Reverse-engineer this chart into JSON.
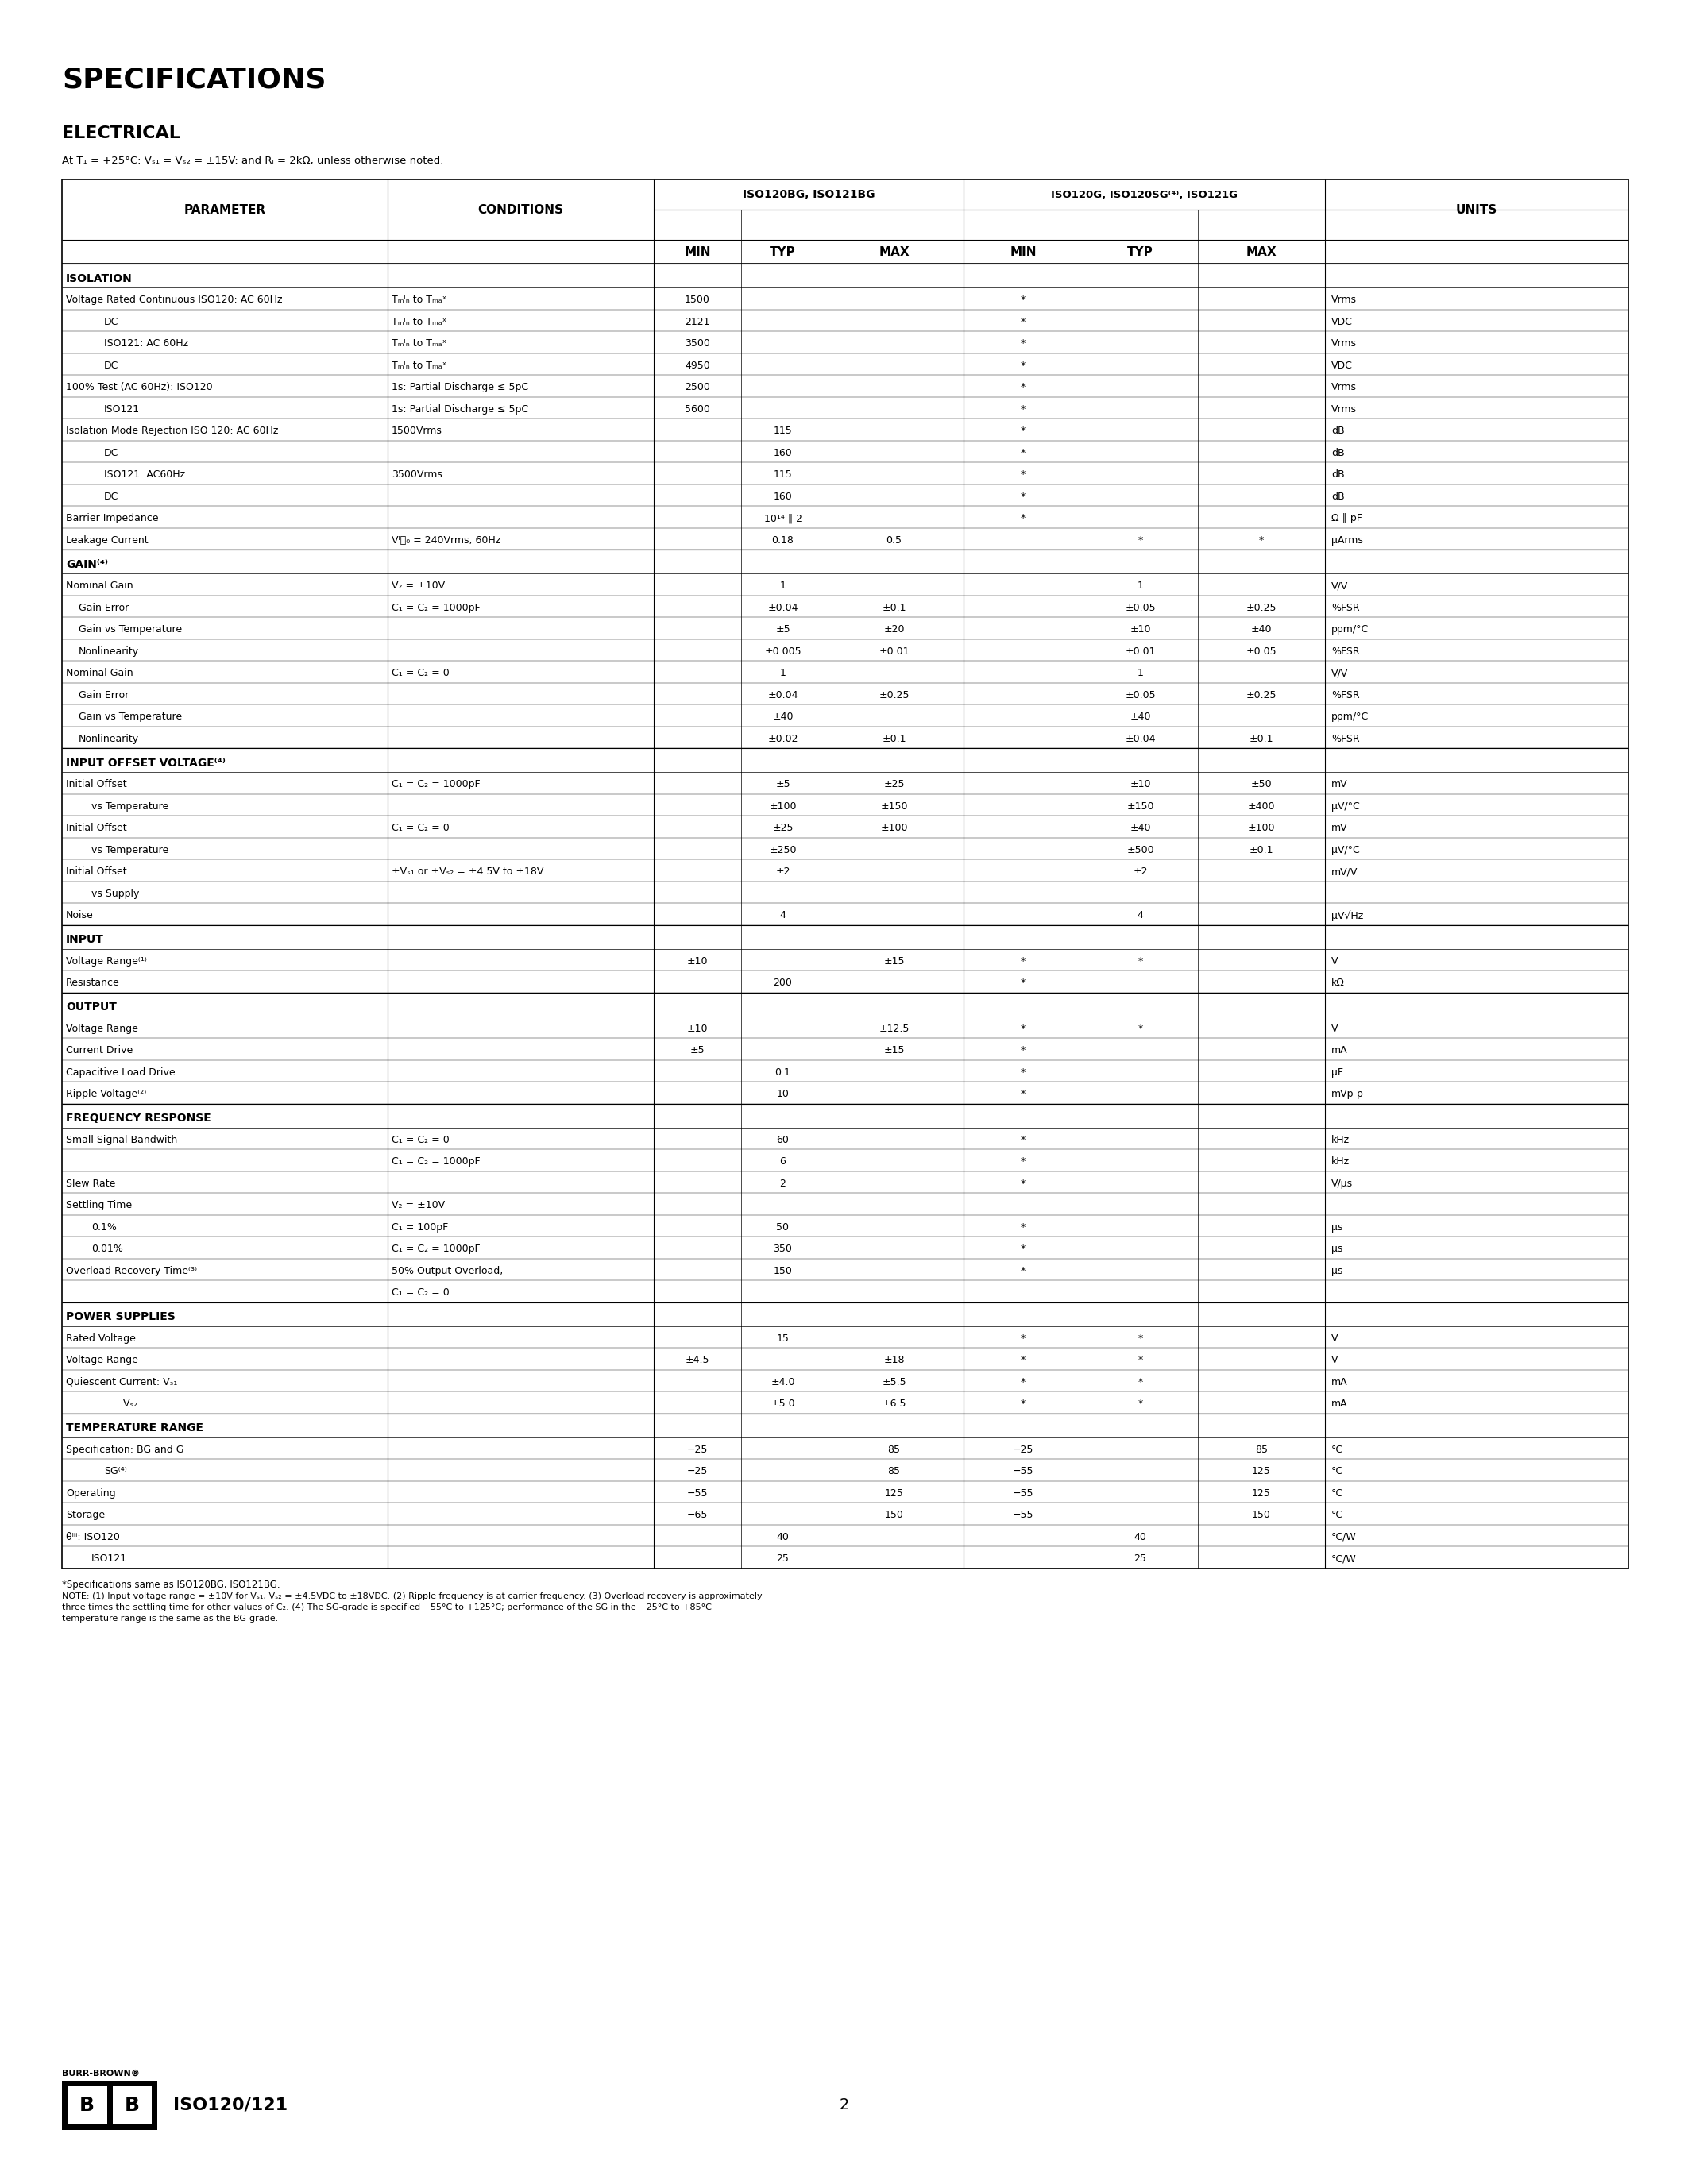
{
  "title": "SPECIFICATIONS",
  "subtitle": "ELECTRICAL",
  "conditions_line": "At T₁ = +25°C: Vₛ₁ = Vₛ₂ = ±15V: and Rₗ = 2kΩ, unless otherwise noted.",
  "bg_color": "#ffffff",
  "text_color": "#000000",
  "table_data": [
    {
      "type": "section",
      "text": "ISOLATION"
    },
    {
      "type": "row",
      "param": "Voltage Rated Continuous ISO120: AC 60Hz",
      "indent": 0,
      "cond": "Tₘᴵₙ to Tₘₐˣ",
      "min1": "1500",
      "typ1": "",
      "max1": "",
      "min2": "*",
      "typ2": "",
      "max2": "",
      "units": "Vrms"
    },
    {
      "type": "row",
      "param": "DC",
      "indent": 3,
      "cond": "Tₘᴵₙ to Tₘₐˣ",
      "min1": "2121",
      "typ1": "",
      "max1": "",
      "min2": "*",
      "typ2": "",
      "max2": "",
      "units": "VDC"
    },
    {
      "type": "row",
      "param": "ISO121: AC 60Hz",
      "indent": 3,
      "cond": "Tₘᴵₙ to Tₘₐˣ",
      "min1": "3500",
      "typ1": "",
      "max1": "",
      "min2": "*",
      "typ2": "",
      "max2": "",
      "units": "Vrms"
    },
    {
      "type": "row",
      "param": "DC",
      "indent": 3,
      "cond": "Tₘᴵₙ to Tₘₐˣ",
      "min1": "4950",
      "typ1": "",
      "max1": "",
      "min2": "*",
      "typ2": "",
      "max2": "",
      "units": "VDC"
    },
    {
      "type": "row",
      "param": "100% Test (AC 60Hz): ISO120",
      "indent": 0,
      "cond": "1s: Partial Discharge ≤ 5pC",
      "min1": "2500",
      "typ1": "",
      "max1": "",
      "min2": "*",
      "typ2": "",
      "max2": "",
      "units": "Vrms"
    },
    {
      "type": "row",
      "param": "ISO121",
      "indent": 3,
      "cond": "1s: Partial Discharge ≤ 5pC",
      "min1": "5600",
      "typ1": "",
      "max1": "",
      "min2": "*",
      "typ2": "",
      "max2": "",
      "units": "Vrms"
    },
    {
      "type": "row",
      "param": "Isolation Mode Rejection ISO 120: AC 60Hz",
      "indent": 0,
      "cond": "1500Vrms",
      "min1": "",
      "typ1": "115",
      "max1": "",
      "min2": "*",
      "typ2": "",
      "max2": "",
      "units": "dB"
    },
    {
      "type": "row",
      "param": "DC",
      "indent": 3,
      "cond": "",
      "min1": "",
      "typ1": "160",
      "max1": "",
      "min2": "*",
      "typ2": "",
      "max2": "",
      "units": "dB"
    },
    {
      "type": "row",
      "param": "ISO121: AC60Hz",
      "indent": 3,
      "cond": "3500Vrms",
      "min1": "",
      "typ1": "115",
      "max1": "",
      "min2": "*",
      "typ2": "",
      "max2": "",
      "units": "dB"
    },
    {
      "type": "row",
      "param": "DC",
      "indent": 3,
      "cond": "",
      "min1": "",
      "typ1": "160",
      "max1": "",
      "min2": "*",
      "typ2": "",
      "max2": "",
      "units": "dB"
    },
    {
      "type": "row",
      "param": "Barrier Impedance",
      "indent": 0,
      "cond": "",
      "min1": "",
      "typ1": "10¹⁴ ‖ 2",
      "max1": "",
      "min2": "*",
      "typ2": "",
      "max2": "",
      "units": "Ω ‖ pF"
    },
    {
      "type": "row",
      "param": "Leakage Current",
      "indent": 0,
      "cond": "VᴵⰐ₀ = 240Vrms, 60Hz",
      "min1": "",
      "typ1": "0.18",
      "max1": "0.5",
      "min2": "",
      "typ2": "*",
      "max2": "*",
      "units": "μArms"
    },
    {
      "type": "section",
      "text": "GAIN⁽⁴⁾"
    },
    {
      "type": "row",
      "param": "Nominal Gain",
      "indent": 0,
      "cond": "V₂ = ±10V",
      "min1": "",
      "typ1": "1",
      "max1": "",
      "min2": "",
      "typ2": "1",
      "max2": "",
      "units": "V/V"
    },
    {
      "type": "row",
      "param": "Gain Error",
      "indent": 1,
      "cond": "C₁ = C₂ = 1000pF",
      "min1": "",
      "typ1": "±0.04",
      "max1": "±0.1",
      "min2": "",
      "typ2": "±0.05",
      "max2": "±0.25",
      "units": "%FSR"
    },
    {
      "type": "row",
      "param": "Gain vs Temperature",
      "indent": 1,
      "cond": "",
      "min1": "",
      "typ1": "±5",
      "max1": "±20",
      "min2": "",
      "typ2": "±10",
      "max2": "±40",
      "units": "ppm/°C"
    },
    {
      "type": "row",
      "param": "Nonlinearity",
      "indent": 1,
      "cond": "",
      "min1": "",
      "typ1": "±0.005",
      "max1": "±0.01",
      "min2": "",
      "typ2": "±0.01",
      "max2": "±0.05",
      "units": "%FSR"
    },
    {
      "type": "row",
      "param": "Nominal Gain",
      "indent": 0,
      "cond": "C₁ = C₂ = 0",
      "min1": "",
      "typ1": "1",
      "max1": "",
      "min2": "",
      "typ2": "1",
      "max2": "",
      "units": "V/V"
    },
    {
      "type": "row",
      "param": "Gain Error",
      "indent": 1,
      "cond": "",
      "min1": "",
      "typ1": "±0.04",
      "max1": "±0.25",
      "min2": "",
      "typ2": "±0.05",
      "max2": "±0.25",
      "units": "%FSR"
    },
    {
      "type": "row",
      "param": "Gain vs Temperature",
      "indent": 1,
      "cond": "",
      "min1": "",
      "typ1": "±40",
      "max1": "",
      "min2": "",
      "typ2": "±40",
      "max2": "",
      "units": "ppm/°C"
    },
    {
      "type": "row",
      "param": "Nonlinearity",
      "indent": 1,
      "cond": "",
      "min1": "",
      "typ1": "±0.02",
      "max1": "±0.1",
      "min2": "",
      "typ2": "±0.04",
      "max2": "±0.1",
      "units": "%FSR"
    },
    {
      "type": "section",
      "text": "INPUT OFFSET VOLTAGE⁽⁴⁾"
    },
    {
      "type": "row",
      "param": "Initial Offset",
      "indent": 0,
      "cond": "C₁ = C₂ = 1000pF",
      "min1": "",
      "typ1": "±5",
      "max1": "±25",
      "min2": "",
      "typ2": "±10",
      "max2": "±50",
      "units": "mV"
    },
    {
      "type": "row",
      "param": "vs Temperature",
      "indent": 2,
      "cond": "",
      "min1": "",
      "typ1": "±100",
      "max1": "±150",
      "min2": "",
      "typ2": "±150",
      "max2": "±400",
      "units": "μV/°C"
    },
    {
      "type": "row",
      "param": "Initial Offset",
      "indent": 0,
      "cond": "C₁ = C₂ = 0",
      "min1": "",
      "typ1": "±25",
      "max1": "±100",
      "min2": "",
      "typ2": "±40",
      "max2": "±100",
      "units": "mV"
    },
    {
      "type": "row",
      "param": "vs Temperature",
      "indent": 2,
      "cond": "",
      "min1": "",
      "typ1": "±250",
      "max1": "",
      "min2": "",
      "typ2": "±500",
      "max2": "±0.1",
      "units": "μV/°C"
    },
    {
      "type": "row",
      "param": "Initial Offset",
      "indent": 0,
      "cond": "±Vₛ₁ or ±Vₛ₂ = ±4.5V to ±18V",
      "min1": "",
      "typ1": "±2",
      "max1": "",
      "min2": "",
      "typ2": "±2",
      "max2": "",
      "units": "mV/V_"
    },
    {
      "type": "row",
      "param": "vs Supply",
      "indent": 2,
      "cond": "",
      "min1": "",
      "typ1": "",
      "max1": "",
      "min2": "",
      "typ2": "",
      "max2": "",
      "units": ""
    },
    {
      "type": "row",
      "param": "Noise",
      "indent": 0,
      "cond": "",
      "min1": "",
      "typ1": "4",
      "max1": "",
      "min2": "",
      "typ2": "4",
      "max2": "",
      "units": "μV√Hz"
    },
    {
      "type": "section",
      "text": "INPUT"
    },
    {
      "type": "row",
      "param": "Voltage Range⁽¹⁾",
      "indent": 0,
      "cond": "",
      "min1": "±10",
      "typ1": "",
      "max1": "±15",
      "min2": "*",
      "typ2": "*",
      "max2": "",
      "units": "V"
    },
    {
      "type": "row",
      "param": "Resistance",
      "indent": 0,
      "cond": "",
      "min1": "",
      "typ1": "200",
      "max1": "",
      "min2": "*",
      "typ2": "",
      "max2": "",
      "units": "kΩ"
    },
    {
      "type": "section",
      "text": "OUTPUT"
    },
    {
      "type": "row",
      "param": "Voltage Range",
      "indent": 0,
      "cond": "",
      "min1": "±10",
      "typ1": "",
      "max1": "±12.5",
      "min2": "*",
      "typ2": "*",
      "max2": "",
      "units": "V"
    },
    {
      "type": "row",
      "param": "Current Drive",
      "indent": 0,
      "cond": "",
      "min1": "±5",
      "typ1": "",
      "max1": "±15",
      "min2": "*",
      "typ2": "",
      "max2": "",
      "units": "mA"
    },
    {
      "type": "row",
      "param": "Capacitive Load Drive",
      "indent": 0,
      "cond": "",
      "min1": "",
      "typ1": "0.1",
      "max1": "",
      "min2": "*",
      "typ2": "",
      "max2": "",
      "units": "μF"
    },
    {
      "type": "row",
      "param": "Ripple Voltage⁽²⁾",
      "indent": 0,
      "cond": "",
      "min1": "",
      "typ1": "10",
      "max1": "",
      "min2": "*",
      "typ2": "",
      "max2": "",
      "units": "mVp-p"
    },
    {
      "type": "section",
      "text": "FREQUENCY RESPONSE"
    },
    {
      "type": "row",
      "param": "Small Signal Bandwith",
      "indent": 0,
      "cond": "C₁ = C₂ = 0",
      "min1": "",
      "typ1": "60",
      "max1": "",
      "min2": "*",
      "typ2": "",
      "max2": "",
      "units": "kHz"
    },
    {
      "type": "row",
      "param": "",
      "indent": 0,
      "cond": "C₁ = C₂ = 1000pF",
      "min1": "",
      "typ1": "6",
      "max1": "",
      "min2": "*",
      "typ2": "",
      "max2": "",
      "units": "kHz"
    },
    {
      "type": "row",
      "param": "Slew Rate",
      "indent": 0,
      "cond": "",
      "min1": "",
      "typ1": "2",
      "max1": "",
      "min2": "*",
      "typ2": "",
      "max2": "",
      "units": "V/μs"
    },
    {
      "type": "row",
      "param": "Settling Time",
      "indent": 0,
      "cond": "V₂ = ±10V",
      "min1": "",
      "typ1": "",
      "max1": "",
      "min2": "",
      "typ2": "",
      "max2": "",
      "units": ""
    },
    {
      "type": "row",
      "param": "0.1%",
      "indent": 2,
      "cond": "C₁ = 100pF",
      "min1": "",
      "typ1": "50",
      "max1": "",
      "min2": "*",
      "typ2": "",
      "max2": "",
      "units": "μs"
    },
    {
      "type": "row",
      "param": "0.01%",
      "indent": 2,
      "cond": "C₁ = C₂ = 1000pF",
      "min1": "",
      "typ1": "350",
      "max1": "",
      "min2": "*",
      "typ2": "",
      "max2": "",
      "units": "μs"
    },
    {
      "type": "row",
      "param": "Overload Recovery Time⁽³⁾",
      "indent": 0,
      "cond": "50% Output Overload,",
      "min1": "",
      "typ1": "150",
      "max1": "",
      "min2": "*",
      "typ2": "",
      "max2": "",
      "units": "μs"
    },
    {
      "type": "row",
      "param": "",
      "indent": 0,
      "cond": "C₁ = C₂ = 0",
      "min1": "",
      "typ1": "",
      "max1": "",
      "min2": "",
      "typ2": "",
      "max2": "",
      "units": ""
    },
    {
      "type": "section",
      "text": "POWER SUPPLIES"
    },
    {
      "type": "row",
      "param": "Rated Voltage",
      "indent": 0,
      "cond": "",
      "min1": "",
      "typ1": "15",
      "max1": "",
      "min2": "*",
      "typ2": "*",
      "max2": "",
      "units": "V"
    },
    {
      "type": "row",
      "param": "Voltage Range",
      "indent": 0,
      "cond": "",
      "min1": "±4.5",
      "typ1": "",
      "max1": "±18",
      "min2": "*",
      "typ2": "*",
      "max2": "",
      "units": "V"
    },
    {
      "type": "row",
      "param": "Quiescent Current: Vₛ₁",
      "indent": 0,
      "cond": "",
      "min1": "",
      "typ1": "±4.0",
      "max1": "±5.5",
      "min2": "*",
      "typ2": "*",
      "max2": "",
      "units": "mA"
    },
    {
      "type": "row",
      "param": "                  Vₛ₂",
      "indent": 0,
      "cond": "",
      "min1": "",
      "typ1": "±5.0",
      "max1": "±6.5",
      "min2": "*",
      "typ2": "*",
      "max2": "",
      "units": "mA"
    },
    {
      "type": "section",
      "text": "TEMPERATURE RANGE"
    },
    {
      "type": "row",
      "param": "Specification: BG and G",
      "indent": 0,
      "cond": "",
      "min1": "−25",
      "typ1": "",
      "max1": "85",
      "min2": "−25",
      "typ2": "",
      "max2": "85",
      "units": "°C"
    },
    {
      "type": "row",
      "param": "SG⁽⁴⁾",
      "indent": 3,
      "cond": "",
      "min1": "−25",
      "typ1": "",
      "max1": "85",
      "min2": "−55",
      "typ2": "",
      "max2": "125",
      "units": "°C"
    },
    {
      "type": "row",
      "param": "Operating",
      "indent": 0,
      "cond": "",
      "min1": "−55",
      "typ1": "",
      "max1": "125",
      "min2": "−55",
      "typ2": "",
      "max2": "125",
      "units": "°C"
    },
    {
      "type": "row",
      "param": "Storage",
      "indent": 0,
      "cond": "",
      "min1": "−65",
      "typ1": "",
      "max1": "150",
      "min2": "−55",
      "typ2": "",
      "max2": "150",
      "units": "°C"
    },
    {
      "type": "row",
      "param": "θᴵⁱⁱ: ISO120",
      "indent": 0,
      "cond": "",
      "min1": "",
      "typ1": "40",
      "max1": "",
      "min2": "",
      "typ2": "40",
      "max2": "",
      "units": "°C/W"
    },
    {
      "type": "row",
      "param": "ISO121",
      "indent": 2,
      "cond": "",
      "min1": "",
      "typ1": "25",
      "max1": "",
      "min2": "",
      "typ2": "25",
      "max2": "",
      "units": "°C/W"
    }
  ],
  "footnote_star": "*Specifications same as ISO120BG, ISO121BG.",
  "footnote_notes": "NOTE: (1) Input voltage range = ±10V for Vₛ₁, Vₛ₂ = ±4.5VDC to ±18VDC. (2) Ripple frequency is at carrier frequency. (3) Overload recovery is approximately three times the settling time for other values of C₂. (4) The SG-grade is specified −55°C to +125°C; performance of the SG in the −25°C to +85°C temperature range is the same as the BG-grade.",
  "page_number": "2",
  "brand": "BURR-BROWN®",
  "model": "ISO120/121"
}
